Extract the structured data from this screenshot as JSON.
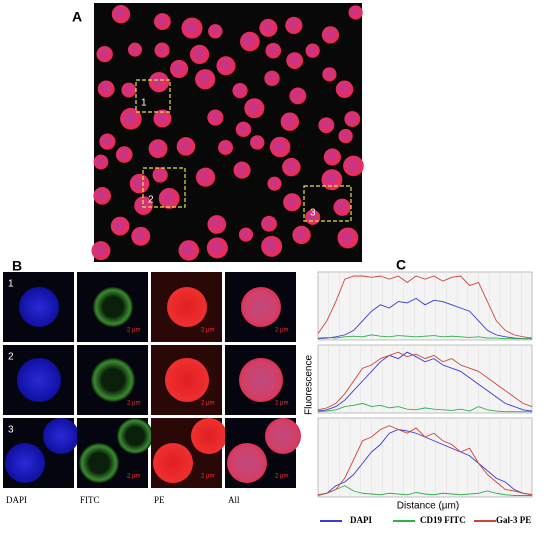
{
  "panel_a": {
    "label": "A",
    "boxes": [
      "1",
      "2",
      "3"
    ]
  },
  "panel_b": {
    "label": "B",
    "rows": [
      "1",
      "2",
      "3"
    ],
    "columns": [
      "DAPI",
      "FITC",
      "PE",
      "All"
    ],
    "scale_bar": "2 µm"
  },
  "panel_c": {
    "label": "C",
    "y_label": "Fluorescence",
    "x_label": "Distance (µm)"
  },
  "chart_data": [
    {
      "type": "line",
      "ylim": [
        0,
        100
      ],
      "series": [
        {
          "name": "DAPI",
          "color": "#3a3ad8",
          "values": [
            2,
            3,
            5,
            8,
            15,
            30,
            45,
            55,
            50,
            60,
            58,
            65,
            55,
            62,
            60,
            55,
            50,
            45,
            30,
            15,
            8,
            5,
            3,
            2,
            2
          ]
        },
        {
          "name": "CD19 FITC",
          "color": "#2fb04a",
          "values": [
            3,
            4,
            3,
            5,
            6,
            5,
            8,
            6,
            5,
            7,
            6,
            5,
            6,
            7,
            5,
            6,
            5,
            4,
            5,
            3,
            3,
            2,
            2,
            2,
            2
          ]
        },
        {
          "name": "Gal-3 PE",
          "color": "#d0453a",
          "values": [
            10,
            30,
            60,
            95,
            100,
            100,
            98,
            100,
            95,
            100,
            90,
            100,
            95,
            100,
            92,
            98,
            100,
            85,
            90,
            60,
            30,
            15,
            8,
            5,
            3
          ]
        }
      ]
    },
    {
      "type": "line",
      "ylim": [
        0,
        100
      ],
      "series": [
        {
          "name": "DAPI",
          "color": "#3a3ad8",
          "values": [
            3,
            5,
            10,
            20,
            35,
            50,
            65,
            80,
            90,
            85,
            95,
            88,
            80,
            85,
            75,
            70,
            65,
            55,
            45,
            35,
            25,
            15,
            10,
            5,
            3
          ]
        },
        {
          "name": "CD19 FITC",
          "color": "#2fb04a",
          "values": [
            2,
            3,
            5,
            10,
            12,
            15,
            10,
            12,
            8,
            10,
            6,
            5,
            8,
            6,
            5,
            4,
            6,
            3,
            10,
            5,
            3,
            2,
            2,
            2,
            2
          ]
        },
        {
          "name": "Gal-3 PE",
          "color": "#d0453a",
          "values": [
            5,
            8,
            15,
            30,
            50,
            70,
            75,
            85,
            90,
            95,
            88,
            92,
            85,
            90,
            80,
            85,
            75,
            70,
            65,
            55,
            45,
            35,
            25,
            15,
            10
          ]
        }
      ]
    },
    {
      "type": "line",
      "ylim": [
        0,
        100
      ],
      "series": [
        {
          "name": "DAPI",
          "color": "#3a3ad8",
          "values": [
            2,
            5,
            15,
            20,
            30,
            45,
            60,
            70,
            85,
            90,
            88,
            85,
            80,
            75,
            70,
            65,
            60,
            55,
            45,
            35,
            25,
            20,
            10,
            5,
            3
          ]
        },
        {
          "name": "CD19 FITC",
          "color": "#2fb04a",
          "values": [
            2,
            5,
            10,
            15,
            8,
            5,
            4,
            3,
            5,
            4,
            3,
            6,
            4,
            3,
            5,
            4,
            3,
            4,
            5,
            8,
            5,
            3,
            2,
            2,
            2
          ]
        },
        {
          "name": "Gal-3 PE",
          "color": "#d0453a",
          "values": [
            3,
            5,
            10,
            25,
            50,
            75,
            80,
            90,
            95,
            90,
            85,
            92,
            80,
            85,
            75,
            70,
            60,
            65,
            45,
            30,
            20,
            10,
            8,
            5,
            3
          ]
        }
      ]
    }
  ]
}
